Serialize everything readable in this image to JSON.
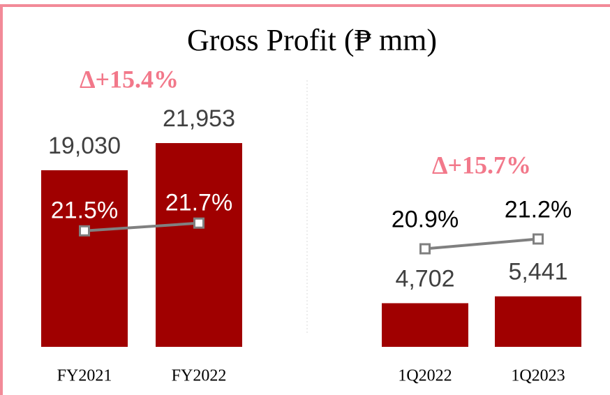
{
  "title": "Gross Profit (₱ mm)",
  "chart_data": [
    {
      "type": "bar",
      "annotation": "Δ+15.4%",
      "categories": [
        "FY2021",
        "FY2022"
      ],
      "ylim": [
        0,
        25000
      ],
      "y2lim": [
        18.5,
        24.5
      ],
      "series": [
        {
          "color": "#a00000",
          "values": [
            19030,
            21953
          ],
          "value_labels": [
            "19,030",
            "21,953"
          ]
        },
        {
          "type": "line",
          "axis": "y2",
          "color": "#808080",
          "values": [
            21.5,
            21.7
          ],
          "value_labels": [
            "21.5%",
            "21.7%"
          ]
        }
      ]
    },
    {
      "type": "bar",
      "annotation": "Δ+15.7%",
      "categories": [
        "1Q2022",
        "1Q2023"
      ],
      "ylim": [
        0,
        25000
      ],
      "y2lim": [
        17.9,
        25
      ],
      "series": [
        {
          "color": "#a00000",
          "values": [
            4702,
            5441
          ],
          "value_labels": [
            "4,702",
            "5,441"
          ]
        },
        {
          "type": "line",
          "axis": "y2",
          "color": "#808080",
          "values": [
            20.9,
            21.2
          ],
          "value_labels": [
            "20.9%",
            "21.2%"
          ]
        }
      ]
    }
  ]
}
